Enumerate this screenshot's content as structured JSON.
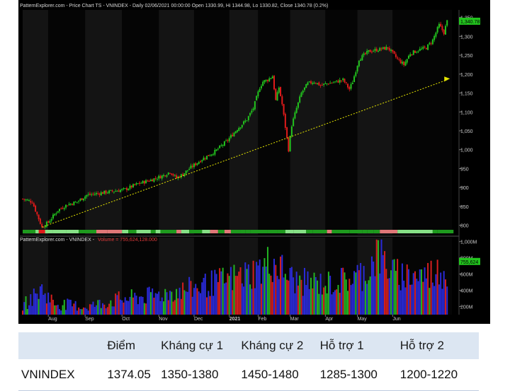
{
  "price_header": "PatternExplorer.com - Price Chart TS - VNINDEX - Daily 02/06/2021 00:00:00 Open 1330.99, Hi 1344.98, Lo 1330.82, Close 1340.78 (0.2%)",
  "volume_header_prefix": "PatternExplorer.com - VNINDEX -",
  "volume_header_value": "Volume = 755,624,128.000",
  "price_last_label": "1,340.78",
  "volume_last_label": "755,624",
  "colors": {
    "background": "#000000",
    "up": "#22c41e",
    "down": "#e01b1b",
    "trendline": "#e6e600",
    "axis_text": "#c8c8c8",
    "header_text": "#d8d8d8",
    "volume_header_value": "#e03a3a",
    "vol_blue": "#2a2ad8",
    "vol_red": "#d41e1e",
    "vol_green": "#22b422",
    "last_price_badge": "#22c41e"
  },
  "chart_data": [
    {
      "type": "candlestick",
      "title": "PatternExplorer.com - Price Chart TS - VNINDEX",
      "ylim": [
        775,
        1370
      ],
      "y_ticks": [
        800,
        850,
        900,
        950,
        1000,
        1050,
        1100,
        1150,
        1200,
        1250,
        1300,
        1350
      ],
      "y_tick_labels": [
        "800",
        "850",
        "900",
        "950",
        "1,000",
        "1,050",
        "1,100",
        "1,150",
        "1,200",
        "1,250",
        "1,300",
        "1,350"
      ],
      "x_month_labels": [
        "Aug",
        "Sep",
        "Oct",
        "Nov",
        "Dec",
        "2021",
        "Feb",
        "Mar",
        "Apr",
        "May",
        "Jun"
      ],
      "x_month_label_bold": [
        false,
        false,
        false,
        false,
        false,
        true,
        false,
        false,
        false,
        false,
        false
      ],
      "waypoints": [
        {
          "x": 0,
          "y": 870
        },
        {
          "x": 6,
          "y": 862
        },
        {
          "x": 12,
          "y": 795
        },
        {
          "x": 16,
          "y": 808
        },
        {
          "x": 22,
          "y": 840
        },
        {
          "x": 28,
          "y": 855
        },
        {
          "x": 34,
          "y": 862
        },
        {
          "x": 40,
          "y": 880
        },
        {
          "x": 48,
          "y": 885
        },
        {
          "x": 56,
          "y": 890
        },
        {
          "x": 64,
          "y": 895
        },
        {
          "x": 72,
          "y": 910
        },
        {
          "x": 80,
          "y": 920
        },
        {
          "x": 88,
          "y": 932
        },
        {
          "x": 92,
          "y": 942
        },
        {
          "x": 96,
          "y": 925
        },
        {
          "x": 100,
          "y": 935
        },
        {
          "x": 104,
          "y": 950
        },
        {
          "x": 112,
          "y": 975
        },
        {
          "x": 120,
          "y": 995
        },
        {
          "x": 128,
          "y": 1025
        },
        {
          "x": 134,
          "y": 1055
        },
        {
          "x": 140,
          "y": 1080
        },
        {
          "x": 144,
          "y": 1110
        },
        {
          "x": 148,
          "y": 1165
        },
        {
          "x": 150,
          "y": 1180
        },
        {
          "x": 153,
          "y": 1185
        },
        {
          "x": 156,
          "y": 1195
        },
        {
          "x": 158,
          "y": 1130
        },
        {
          "x": 160,
          "y": 1165
        },
        {
          "x": 162,
          "y": 1120
        },
        {
          "x": 164,
          "y": 1060
        },
        {
          "x": 166,
          "y": 1000
        },
        {
          "x": 168,
          "y": 1065
        },
        {
          "x": 171,
          "y": 1110
        },
        {
          "x": 174,
          "y": 1150
        },
        {
          "x": 178,
          "y": 1175
        },
        {
          "x": 182,
          "y": 1180
        },
        {
          "x": 186,
          "y": 1170
        },
        {
          "x": 190,
          "y": 1175
        },
        {
          "x": 196,
          "y": 1180
        },
        {
          "x": 200,
          "y": 1185
        },
        {
          "x": 204,
          "y": 1160
        },
        {
          "x": 206,
          "y": 1180
        },
        {
          "x": 210,
          "y": 1240
        },
        {
          "x": 216,
          "y": 1260
        },
        {
          "x": 222,
          "y": 1265
        },
        {
          "x": 228,
          "y": 1270
        },
        {
          "x": 234,
          "y": 1240
        },
        {
          "x": 238,
          "y": 1225
        },
        {
          "x": 242,
          "y": 1255
        },
        {
          "x": 248,
          "y": 1265
        },
        {
          "x": 252,
          "y": 1270
        },
        {
          "x": 256,
          "y": 1290
        },
        {
          "x": 260,
          "y": 1330
        },
        {
          "x": 263,
          "y": 1310
        },
        {
          "x": 265,
          "y": 1340
        }
      ],
      "trendline": [
        {
          "x": 12,
          "y": 795
        },
        {
          "x": 265,
          "y": 1185
        }
      ],
      "trendline_arrow": {
        "x": 265,
        "y": 1188
      },
      "x_max": 268,
      "month_x": [
        16,
        39,
        62,
        85,
        107,
        129,
        147,
        167,
        189,
        209,
        231
      ]
    },
    {
      "type": "bar",
      "title": "PatternExplorer.com - VNINDEX - Volume",
      "ylim": [
        100,
        1050
      ],
      "y_ticks": [
        200,
        400,
        600,
        800,
        1000
      ],
      "y_tick_labels": [
        "200M",
        "400M",
        "600M",
        "800M",
        "1,000M"
      ],
      "volume_profile": [
        {
          "x": 0,
          "v": 250
        },
        {
          "x": 12,
          "v": 480
        },
        {
          "x": 20,
          "v": 280
        },
        {
          "x": 40,
          "v": 230
        },
        {
          "x": 60,
          "v": 340
        },
        {
          "x": 80,
          "v": 390
        },
        {
          "x": 100,
          "v": 470
        },
        {
          "x": 120,
          "v": 580
        },
        {
          "x": 140,
          "v": 700
        },
        {
          "x": 150,
          "v": 780
        },
        {
          "x": 155,
          "v": 900
        },
        {
          "x": 162,
          "v": 760
        },
        {
          "x": 170,
          "v": 600
        },
        {
          "x": 190,
          "v": 560
        },
        {
          "x": 205,
          "v": 640
        },
        {
          "x": 215,
          "v": 740
        },
        {
          "x": 221,
          "v": 1000
        },
        {
          "x": 226,
          "v": 880
        },
        {
          "x": 232,
          "v": 700
        },
        {
          "x": 250,
          "v": 690
        },
        {
          "x": 265,
          "v": 760
        }
      ]
    }
  ],
  "table": {
    "headers": [
      "",
      "Điểm",
      "Kháng cự 1",
      "Kháng cự 2",
      "Hỗ trợ 1",
      "Hỗ trợ 2"
    ],
    "rows": [
      [
        "VNINDEX",
        "1374.05",
        "1350-1380",
        "1450-1480",
        "1285-1300",
        "1200-1220"
      ]
    ]
  }
}
